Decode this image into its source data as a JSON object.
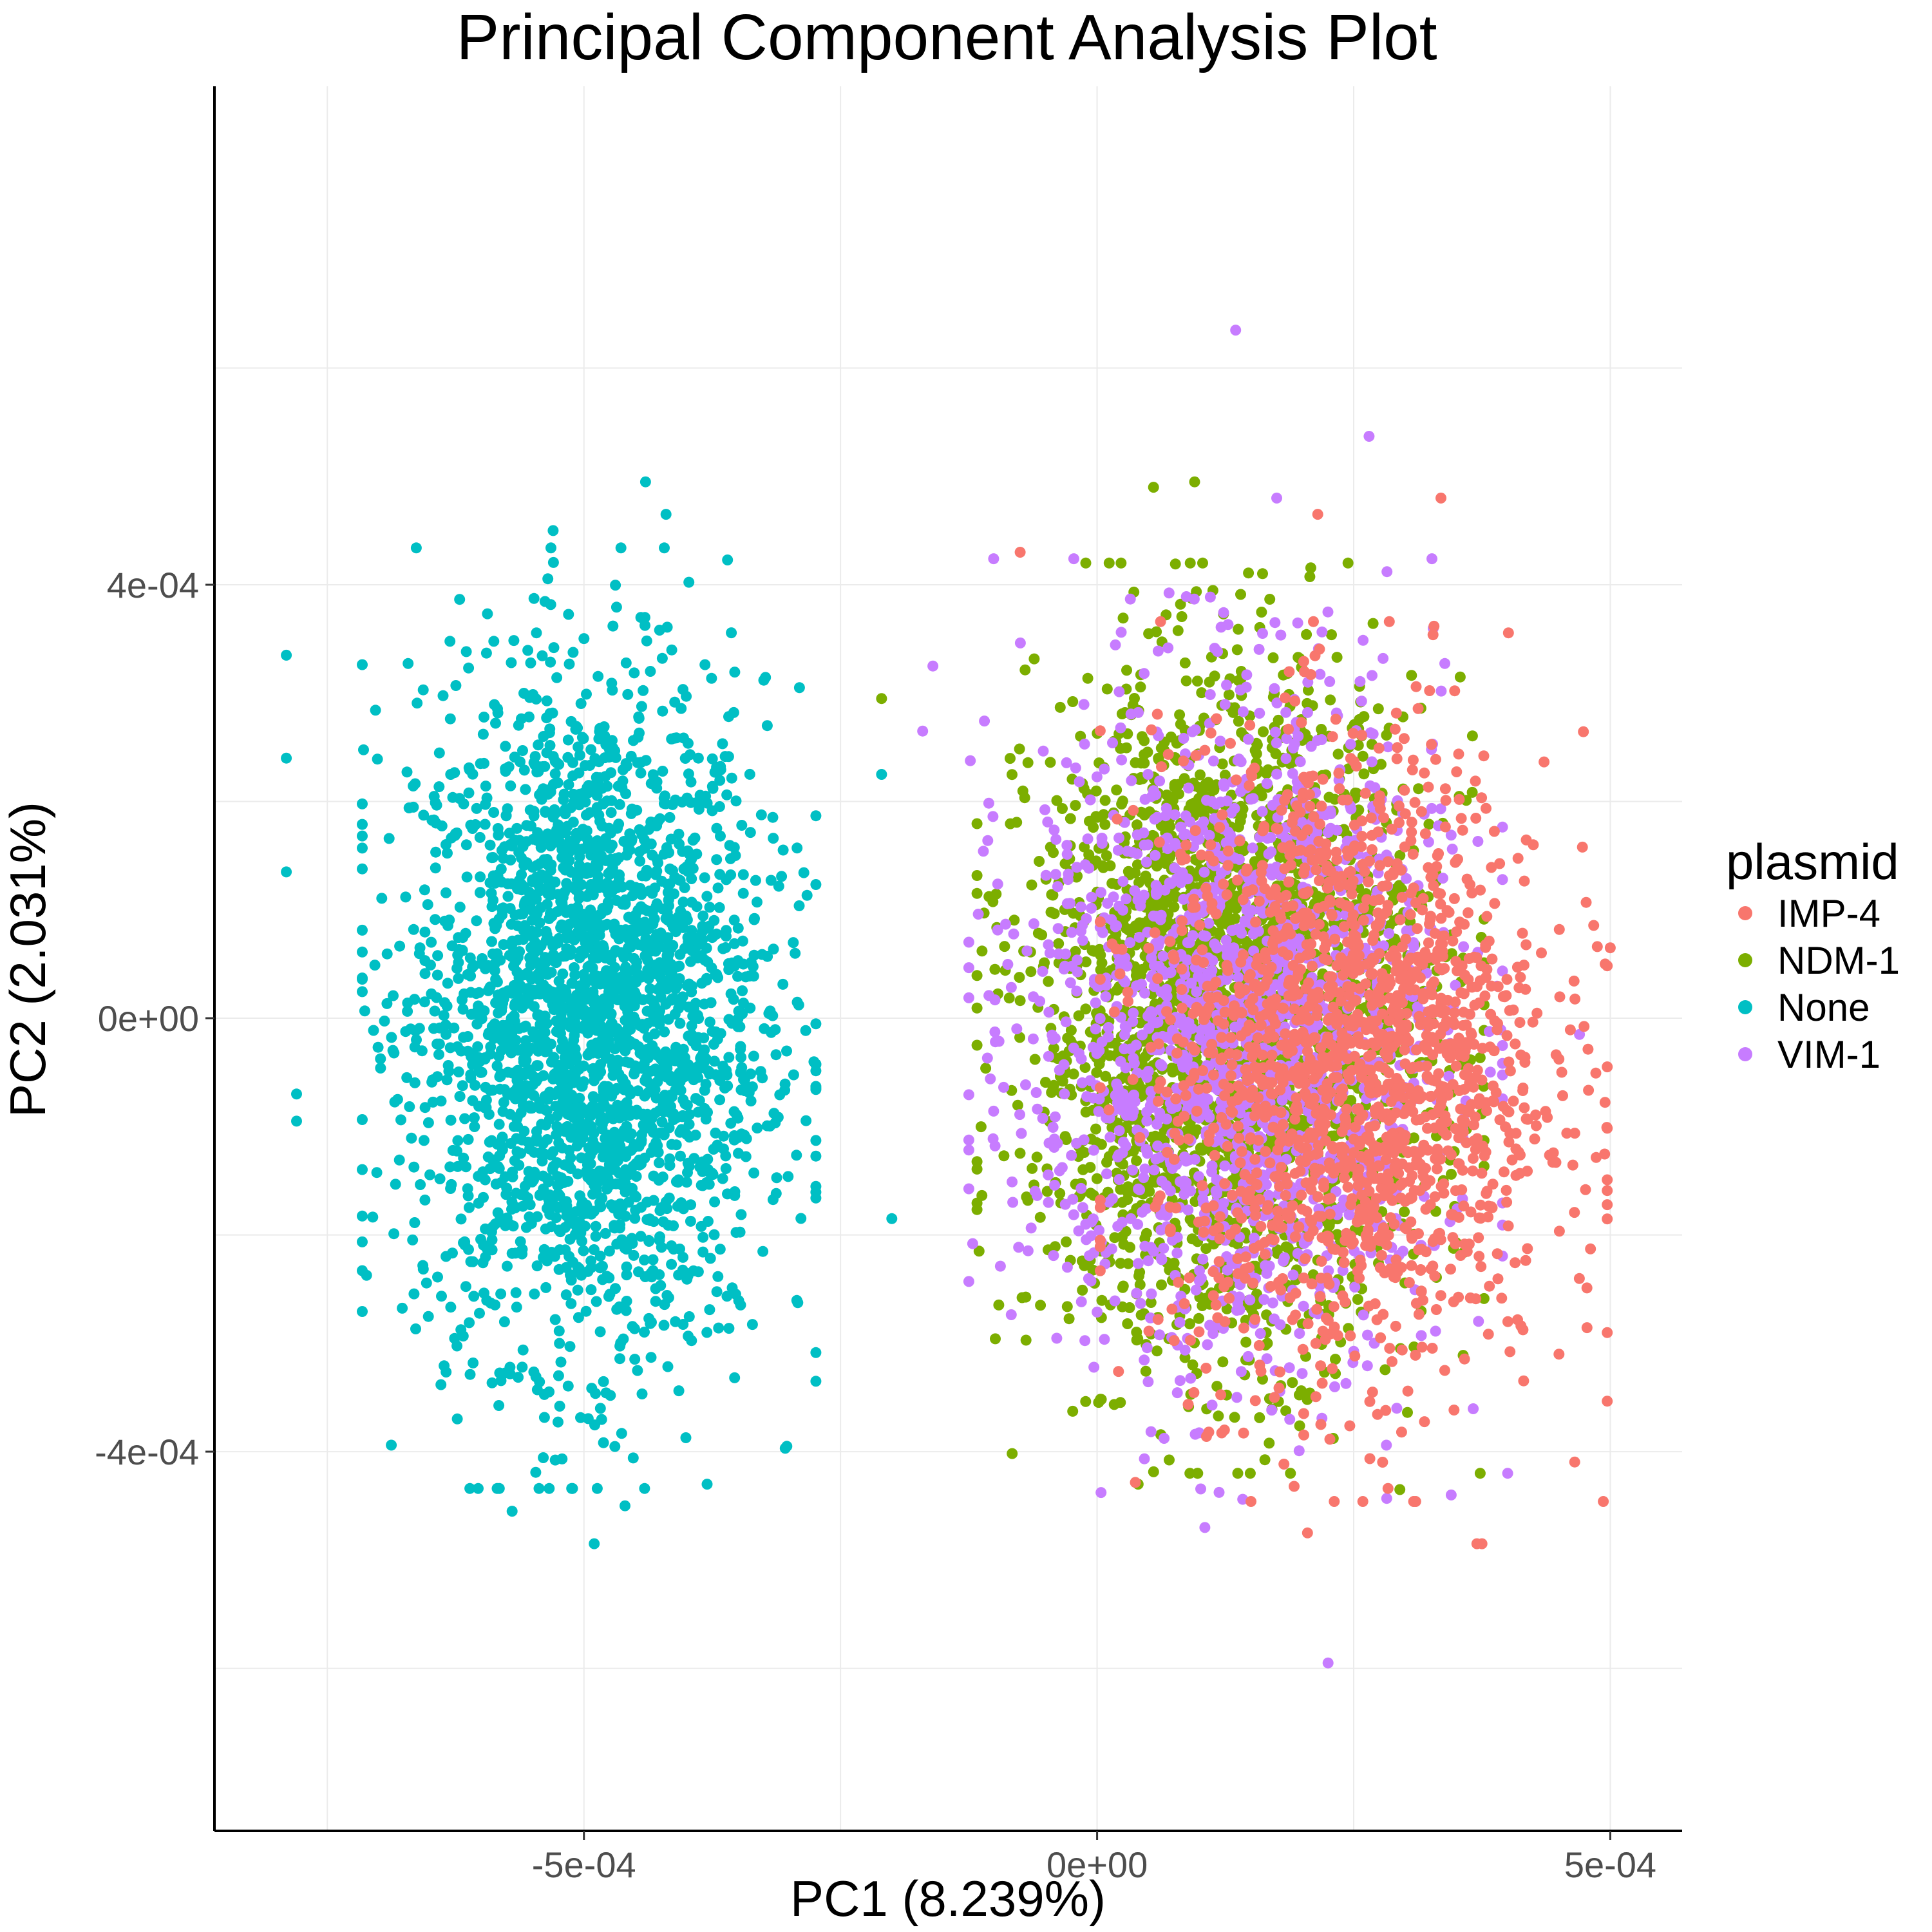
{
  "chart_data": {
    "type": "scatter",
    "title": "Principal Component Analysis Plot",
    "xlabel": "PC1 (8.239%)",
    "ylabel": "PC2 (2.031%)",
    "xlim": [
      -0.00086,
      0.00057
    ],
    "ylim": [
      -0.00075,
      0.00086
    ],
    "x_ticks": [
      -0.0005,
      0,
      0.0005
    ],
    "x_tick_labels": [
      "-5e-04",
      "0e+00",
      "5e-04"
    ],
    "y_ticks": [
      -0.0004,
      0,
      0.0004
    ],
    "y_tick_labels": [
      "-4e-04",
      "0e+00",
      "4e-04"
    ],
    "x_minor_grid": [
      -0.00075,
      -0.00025,
      0.00025
    ],
    "y_minor_grid": [
      -0.0006,
      -0.0002,
      0.0002,
      0.0006
    ],
    "grid": true,
    "legend": {
      "title": "plasmid",
      "position": "right",
      "entries": [
        "IMP-4",
        "NDM-1",
        "None",
        "VIM-1"
      ]
    },
    "series": [
      {
        "name": "None",
        "color": "#00BFC4",
        "center": [
          -0.000495,
          0.0
        ],
        "spread": [
          8.5e-05,
          0.000155
        ],
        "n": 2600,
        "outliers": [
          [
            -0.00044,
            0.000495
          ],
          [
            -0.00042,
            0.000465
          ],
          [
            -0.00053,
            0.00045
          ],
          [
            -0.00079,
            0.000335
          ],
          [
            -0.00079,
            0.00024
          ],
          [
            -0.00079,
            0.000135
          ],
          [
            -0.00078,
            -7e-05
          ],
          [
            -0.00078,
            -9.5e-05
          ],
          [
            -0.00049,
            -0.000485
          ],
          [
            -0.00046,
            -0.00045
          ],
          [
            -0.00057,
            -0.000455
          ],
          [
            -0.00038,
            -0.00043
          ],
          [
            -0.00029,
            0.000305
          ],
          [
            -0.0002,
            -0.000185
          ],
          [
            -0.00021,
            0.000225
          ]
        ]
      },
      {
        "name": "NDM-1",
        "color": "#7CAE00",
        "center": [
          0.00013,
          0.0
        ],
        "spread": [
          9.5e-05,
          0.00015
        ],
        "n": 2600,
        "outliers": [
          [
            5.5e-05,
            0.00049
          ],
          [
            9.5e-05,
            0.000495
          ],
          [
            -0.00021,
            0.000295
          ],
          [
            4e-05,
            -0.00043
          ],
          [
            0.000295,
            -0.000435
          ],
          [
            -0.000115,
            -0.000215
          ]
        ]
      },
      {
        "name": "VIM-1",
        "color": "#C77CFF",
        "center": [
          0.000135,
          -1e-05
        ],
        "spread": [
          0.0001,
          0.000155
        ],
        "n": 1700,
        "outliers": [
          [
            0.000135,
            0.000635
          ],
          [
            0.000265,
            0.000537
          ],
          [
            0.000175,
            0.00048
          ],
          [
            -0.00017,
            0.000265
          ],
          [
            -0.00016,
            0.000325
          ],
          [
            0.000225,
            -0.000595
          ],
          [
            0.000105,
            -0.00047
          ],
          [
            0.000345,
            -0.00044
          ],
          [
            0.0004,
            -0.00042
          ],
          [
            0.00047,
            -1.5e-05
          ]
        ]
      },
      {
        "name": "IMP-4",
        "color": "#F8766D",
        "center": [
          0.00025,
          -4e-05
        ],
        "spread": [
          9.5e-05,
          0.000145
        ],
        "n": 1700,
        "outliers": [
          [
            -7.5e-05,
            0.00043
          ],
          [
            0.000215,
            0.000465
          ],
          [
            0.000335,
            0.00048
          ],
          [
            0.000375,
            -0.000485
          ],
          [
            0.000495,
            5e-05
          ],
          [
            0.0005,
            6.5e-05
          ],
          [
            0.00037,
            -0.000485
          ],
          [
            0.00045,
            -0.00031
          ],
          [
            0.000425,
            0.00016
          ],
          [
            0.000205,
            -0.000475
          ]
        ]
      }
    ]
  }
}
